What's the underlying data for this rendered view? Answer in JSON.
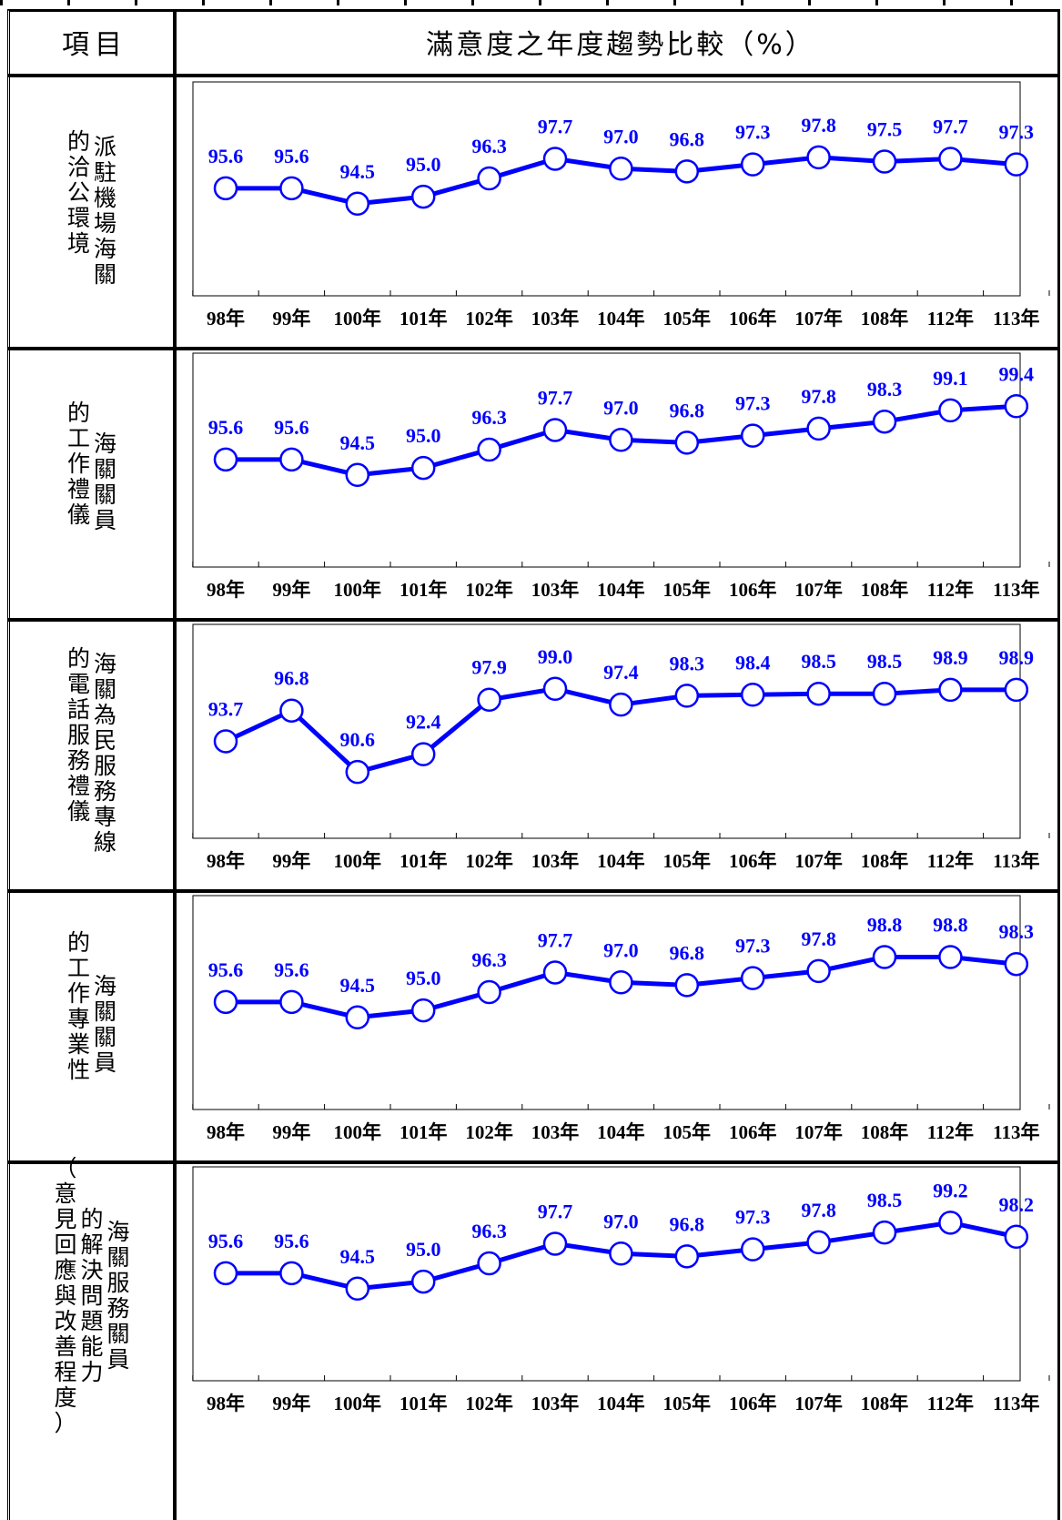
{
  "header": {
    "item_label": "項目",
    "title": "滿意度之年度趨勢比較（%）"
  },
  "rows": [
    {
      "label_columns": [
        "派駐機場海關",
        "的洽公環境"
      ]
    },
    {
      "label_columns": [
        "海關關員",
        "的工作禮儀"
      ]
    },
    {
      "label_columns": [
        "海關為民服務專線",
        "的電話服務禮儀"
      ]
    },
    {
      "label_columns": [
        "海關關員",
        "的工作專業性"
      ]
    },
    {
      "label_columns": [
        "海關服務關員",
        "的解決問題能力",
        "（意見回應與改善程度）"
      ]
    }
  ],
  "chart_data": [
    {
      "type": "line",
      "categories": [
        "98年",
        "99年",
        "100年",
        "101年",
        "102年",
        "103年",
        "104年",
        "105年",
        "106年",
        "107年",
        "108年",
        "112年",
        "113年"
      ],
      "series": [
        {
          "values": [
            95.6,
            95.6,
            94.5,
            95.0,
            96.3,
            97.7,
            97.0,
            96.8,
            97.3,
            97.8,
            97.5,
            97.7,
            97.3
          ]
        }
      ],
      "ylim": [
        88,
        100
      ],
      "grid": false,
      "line_color": "#0000ff",
      "marker": "open-circle"
    },
    {
      "type": "line",
      "categories": [
        "98年",
        "99年",
        "100年",
        "101年",
        "102年",
        "103年",
        "104年",
        "105年",
        "106年",
        "107年",
        "108年",
        "112年",
        "113年"
      ],
      "series": [
        {
          "values": [
            95.6,
            95.6,
            94.5,
            95.0,
            96.3,
            97.7,
            97.0,
            96.8,
            97.3,
            97.8,
            98.3,
            99.1,
            99.4
          ]
        }
      ],
      "ylim": [
        88,
        100
      ],
      "grid": false,
      "line_color": "#0000ff",
      "marker": "open-circle"
    },
    {
      "type": "line",
      "categories": [
        "98年",
        "99年",
        "100年",
        "101年",
        "102年",
        "103年",
        "104年",
        "105年",
        "106年",
        "107年",
        "108年",
        "112年",
        "113年"
      ],
      "series": [
        {
          "values": [
            93.7,
            96.8,
            90.6,
            92.4,
            97.9,
            99.0,
            97.4,
            98.3,
            98.4,
            98.5,
            98.5,
            98.9,
            98.9
          ]
        }
      ],
      "ylim": [
        84,
        101
      ],
      "grid": false,
      "line_color": "#0000ff",
      "marker": "open-circle"
    },
    {
      "type": "line",
      "categories": [
        "98年",
        "99年",
        "100年",
        "101年",
        "102年",
        "103年",
        "104年",
        "105年",
        "106年",
        "107年",
        "108年",
        "112年",
        "113年"
      ],
      "series": [
        {
          "values": [
            95.6,
            95.6,
            94.5,
            95.0,
            96.3,
            97.7,
            97.0,
            96.8,
            97.3,
            97.8,
            98.8,
            98.8,
            98.3
          ]
        }
      ],
      "ylim": [
        88,
        100
      ],
      "grid": false,
      "line_color": "#0000ff",
      "marker": "open-circle"
    },
    {
      "type": "line",
      "categories": [
        "98年",
        "99年",
        "100年",
        "101年",
        "102年",
        "103年",
        "104年",
        "105年",
        "106年",
        "107年",
        "108年",
        "112年",
        "113年"
      ],
      "series": [
        {
          "values": [
            95.6,
            95.6,
            94.5,
            95.0,
            96.3,
            97.7,
            97.0,
            96.8,
            97.3,
            97.8,
            98.5,
            99.2,
            98.2
          ]
        }
      ],
      "ylim": [
        88,
        100
      ],
      "grid": false,
      "line_color": "#0000ff",
      "marker": "open-circle"
    }
  ]
}
